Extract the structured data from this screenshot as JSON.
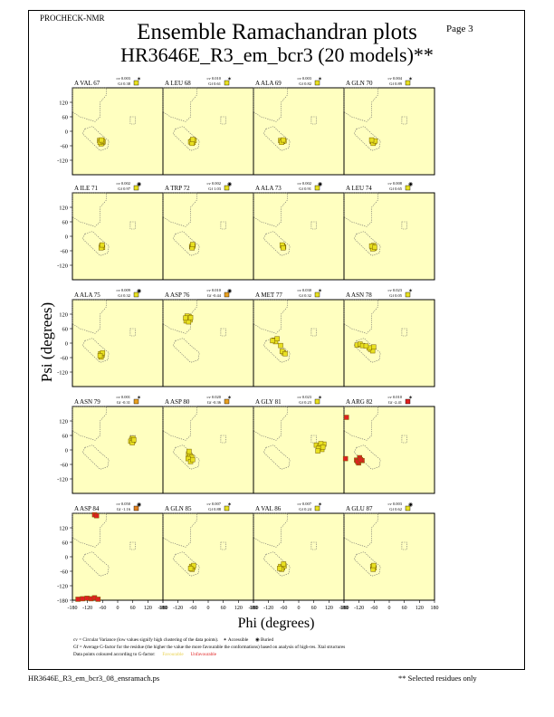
{
  "header": {
    "program": "PROCHECK-NMR",
    "page_label": "Page  3",
    "title_line1": "Ensemble Ramachandran plots",
    "title_line2": "HR3646E_R3_em_bcr3 (20 models)**"
  },
  "chart_data": {
    "type": "scatter",
    "xlabel": "Phi (degrees)",
    "ylabel": "Psi (degrees)",
    "xlim": [
      -180,
      180
    ],
    "ylim": [
      -180,
      180
    ],
    "x_ticks": [
      -180,
      -120,
      -60,
      0,
      60,
      120,
      180
    ],
    "y_ticks": [
      120,
      60,
      0,
      -60,
      -120,
      -180
    ],
    "background_color": "#ffffc0",
    "point_color_favourable": "#e8e020",
    "point_color_unfavourable": "#e02020",
    "panels": [
      {
        "label": "A VAL 67",
        "cv": "cv 0.003",
        "gf": "Gf  0.38",
        "status": "Accessible",
        "gf_color": "#e8e020",
        "points": [
          [
            -68,
            -42
          ],
          [
            -62,
            -48
          ],
          [
            -72,
            -38
          ],
          [
            -58,
            -44
          ],
          [
            -66,
            -52
          ],
          [
            -70,
            -46
          ],
          [
            -60,
            -40
          ],
          [
            -64,
            -36
          ]
        ]
      },
      {
        "label": "A LEU 68",
        "cv": "cv 0.010",
        "gf": "Gf  0.61",
        "status": "Accessible",
        "gf_color": "#e8e020",
        "points": [
          [
            -66,
            -40
          ],
          [
            -60,
            -46
          ],
          [
            -70,
            -44
          ],
          [
            -56,
            -38
          ],
          [
            -64,
            -50
          ],
          [
            -62,
            -34
          ]
        ]
      },
      {
        "label": "A ALA 69",
        "cv": "cv 0.003",
        "gf": "Gf  0.82",
        "status": "Accessible",
        "gf_color": "#e8e020",
        "points": [
          [
            -72,
            -38
          ],
          [
            -64,
            -42
          ],
          [
            -58,
            -40
          ],
          [
            -68,
            -46
          ],
          [
            -62,
            -36
          ]
        ]
      },
      {
        "label": "A GLN 70",
        "cv": "cv 0.004",
        "gf": "Gf  0.89",
        "status": "Accessible",
        "gf_color": "#e8e020",
        "points": [
          [
            -68,
            -42
          ],
          [
            -60,
            -44
          ],
          [
            -64,
            -50
          ],
          [
            -56,
            -40
          ],
          [
            -70,
            -36
          ]
        ]
      },
      {
        "label": "A ILE 71",
        "cv": "cv 0.002",
        "gf": "Gf  0.97",
        "status": "Buried",
        "gf_color": "#e8e020",
        "points": [
          [
            -64,
            -40
          ],
          [
            -60,
            -46
          ],
          [
            -66,
            -48
          ],
          [
            -62,
            -36
          ]
        ]
      },
      {
        "label": "A TRP 72",
        "cv": "cv 0.002",
        "gf": "Gf  1.03",
        "status": "Buried",
        "gf_color": "#e8e020",
        "points": [
          [
            -66,
            -42
          ],
          [
            -60,
            -40
          ],
          [
            -64,
            -48
          ],
          [
            -62,
            -34
          ]
        ]
      },
      {
        "label": "A ALA 73",
        "cv": "cv 0.002",
        "gf": "Gf  0.91",
        "status": "Buried",
        "gf_color": "#e8e020",
        "points": [
          [
            -64,
            -40
          ],
          [
            -60,
            -44
          ],
          [
            -66,
            -36
          ],
          [
            -62,
            -48
          ]
        ]
      },
      {
        "label": "A LEU 74",
        "cv": "cv 0.008",
        "gf": "Gf  0.65",
        "status": "Buried",
        "gf_color": "#e8e020",
        "points": [
          [
            -68,
            -44
          ],
          [
            -62,
            -38
          ],
          [
            -60,
            -50
          ],
          [
            -66,
            -52
          ],
          [
            -70,
            -40
          ],
          [
            -58,
            -46
          ]
        ]
      },
      {
        "label": "A ALA 75",
        "cv": "cv 0.009",
        "gf": "Gf  0.32",
        "status": "Buried",
        "gf_color": "#e8e020",
        "points": [
          [
            -68,
            -44
          ],
          [
            -62,
            -50
          ],
          [
            -66,
            -58
          ],
          [
            -60,
            -40
          ],
          [
            -70,
            -52
          ]
        ]
      },
      {
        "label": "A ASP 76",
        "cv": "cv 0.010",
        "gf": "Gf -0.44",
        "status": "Buried",
        "gf_color": "#e8a020",
        "points": [
          [
            -82,
            100
          ],
          [
            -76,
            110
          ],
          [
            -88,
            92
          ],
          [
            -72,
            96
          ],
          [
            -84,
            112
          ],
          [
            -78,
            88
          ],
          [
            -90,
            104
          ],
          [
            -70,
            106
          ]
        ]
      },
      {
        "label": "A MET 77",
        "cv": "cv 0.030",
        "gf": "Gf  0.32",
        "status": "Accessible",
        "gf_color": "#e8e020",
        "points": [
          [
            -98,
            12
          ],
          [
            -92,
            6
          ],
          [
            -86,
            18
          ],
          [
            -60,
            -40
          ],
          [
            -66,
            -34
          ],
          [
            -54,
            -44
          ],
          [
            -72,
            -10
          ],
          [
            -104,
            10
          ]
        ]
      },
      {
        "label": "A ASN 78",
        "cv": "cv 0.023",
        "gf": "Gf  0.05",
        "status": "Accessible",
        "gf_color": "#e8e020",
        "points": [
          [
            -128,
            -8
          ],
          [
            -116,
            -4
          ],
          [
            -106,
            -10
          ],
          [
            -74,
            -26
          ],
          [
            -66,
            -32
          ],
          [
            -80,
            -20
          ],
          [
            -62,
            -16
          ],
          [
            -92,
            -12
          ]
        ]
      },
      {
        "label": "A ASN 79",
        "cv": "cv 0.001",
        "gf": "Gf -0.31",
        "status": "Accessible",
        "gf_color": "#e8a020",
        "points": [
          [
            56,
            44
          ],
          [
            62,
            38
          ],
          [
            52,
            36
          ],
          [
            60,
            48
          ],
          [
            58,
            30
          ],
          [
            64,
            42
          ]
        ]
      },
      {
        "label": "A ASP 80",
        "cv": "cv 0.020",
        "gf": "Gf -0.36",
        "status": "Accessible",
        "gf_color": "#e8a020",
        "points": [
          [
            -78,
            -16
          ],
          [
            -72,
            -24
          ],
          [
            -66,
            -30
          ],
          [
            -80,
            -36
          ],
          [
            -70,
            -48
          ],
          [
            -62,
            -40
          ],
          [
            -76,
            -6
          ]
        ]
      },
      {
        "label": "A GLY 81",
        "cv": "cv 0.023",
        "gf": "Gf  0.23",
        "status": "Accessible",
        "gf_color": "#e8e020",
        "points": [
          [
            70,
            20
          ],
          [
            84,
            14
          ],
          [
            92,
            2
          ],
          [
            78,
            6
          ],
          [
            100,
            24
          ],
          [
            76,
            -4
          ],
          [
            88,
            26
          ],
          [
            96,
            12
          ]
        ]
      },
      {
        "label": "A ARG 82",
        "cv": "cv 0.010",
        "gf": "Gf -2.41",
        "status": "Accessible",
        "gf_color": "#e02020",
        "points": [
          [
            -170,
            135
          ],
          [
            -174,
            -36
          ],
          [
            -130,
            -42
          ],
          [
            -122,
            -54
          ],
          [
            -118,
            -32
          ],
          [
            -108,
            -44
          ],
          [
            -126,
            -48
          ],
          [
            -114,
            -40
          ]
        ]
      },
      {
        "label": "A ASP 84",
        "cv": "cv 0.050",
        "gf": "Gf -1.16",
        "status": "Buried",
        "gf_color": "#e08020",
        "points": [
          [
            -92,
            174
          ],
          [
            -84,
            170
          ],
          [
            -158,
            -176
          ],
          [
            -140,
            -174
          ],
          [
            -122,
            -172
          ],
          [
            -106,
            -174
          ],
          [
            -92,
            -170
          ],
          [
            -78,
            -176
          ]
        ]
      },
      {
        "label": "A GLN 85",
        "cv": "cv 0.007",
        "gf": "Gf  0.88",
        "status": "Accessible",
        "gf_color": "#e8e020",
        "points": [
          [
            -66,
            -40
          ],
          [
            -60,
            -44
          ],
          [
            -64,
            -52
          ],
          [
            -58,
            -36
          ],
          [
            -70,
            -48
          ]
        ]
      },
      {
        "label": "A VAL 86",
        "cv": "cv 0.007",
        "gf": "Gf  0.24",
        "status": "Accessible",
        "gf_color": "#e8e020",
        "points": [
          [
            -72,
            -40
          ],
          [
            -64,
            -46
          ],
          [
            -58,
            -38
          ],
          [
            -68,
            -52
          ],
          [
            -60,
            -30
          ],
          [
            -76,
            -48
          ]
        ]
      },
      {
        "label": "A GLU 87",
        "cv": "cv 0.003",
        "gf": "Gf  0.62",
        "status": "Buried",
        "gf_color": "#e8e020",
        "points": [
          [
            -66,
            -40
          ],
          [
            -60,
            -46
          ],
          [
            -64,
            -52
          ],
          [
            -62,
            -36
          ]
        ]
      }
    ]
  },
  "legend": {
    "cv_text": "cv = Circular Variance (low values signify high clustering of the data points).",
    "accessible": "Accessible",
    "buried": "Buried",
    "gf_text": "Gf = Average G-factor for the residue (the higher the value the more favourable the conformations) based on analysis of high-res. Xtal structures",
    "colour_text": "Data points coloured according to G-factor:",
    "favourable": "Favourable",
    "unfavourable": "Unfavourable"
  },
  "footer": {
    "filename": "HR3646E_R3_em_bcr3_08_ensramach.ps",
    "note": "** Selected residues only"
  }
}
